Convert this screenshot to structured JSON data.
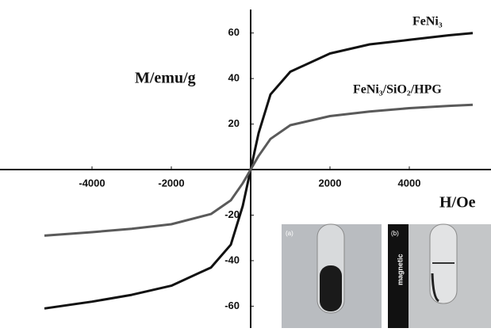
{
  "chart_data": {
    "type": "line",
    "x_label": "H/Oe",
    "y_label": "M/emu/g",
    "x": [
      -5200,
      -4000,
      -3000,
      -2000,
      -1000,
      -500,
      -200,
      -100,
      0,
      100,
      200,
      500,
      1000,
      2000,
      3000,
      4000,
      5000,
      5600
    ],
    "series": [
      {
        "name": "FeNi₃",
        "color": "#111111",
        "values": [
          -61,
          -58,
          -55,
          -51,
          -43,
          -33,
          -16,
          -8,
          0,
          8,
          16,
          33,
          43,
          51,
          55,
          57,
          59,
          60
        ]
      },
      {
        "name": "FeNi₃/SiO₂/HPG",
        "color": "#5a5a5a",
        "values": [
          -29,
          -27.5,
          -26,
          -24,
          -19.5,
          -13.5,
          -6,
          -3,
          0,
          3,
          6,
          13.5,
          19.5,
          23.5,
          25.5,
          27,
          28,
          28.5
        ]
      }
    ],
    "xlim": [
      -6320,
      6060
    ],
    "ylim": [
      -69.6,
      74.5
    ],
    "xticks": [
      -4000,
      -2000,
      2000,
      4000
    ],
    "yticks": [
      -60,
      -40,
      -20,
      20,
      40,
      60
    ],
    "inset_labels": [
      "(a)",
      "(b)",
      "magnetic"
    ]
  }
}
